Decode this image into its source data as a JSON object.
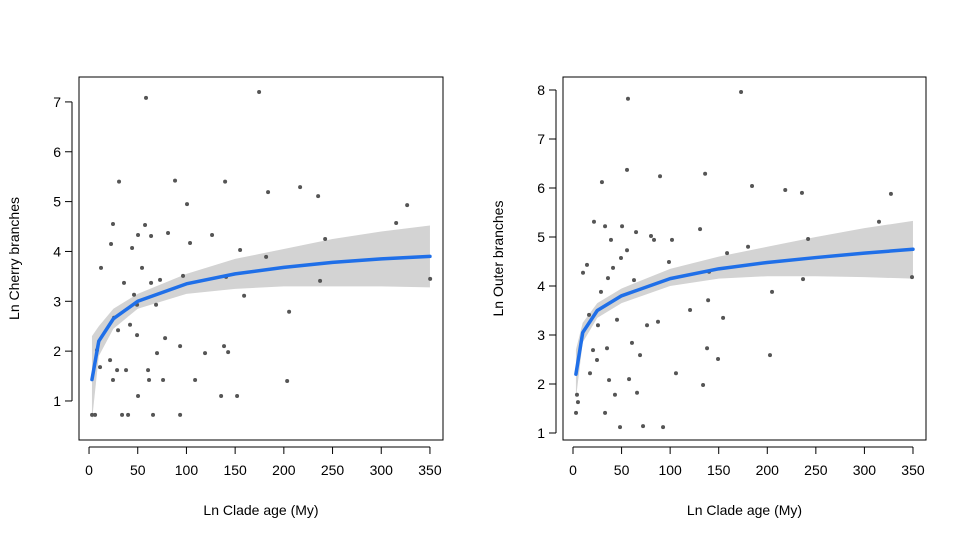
{
  "chart_data": [
    {
      "type": "scatter",
      "x_label": "Ln Clade age (My)",
      "y_label": "Ln Cherry branches",
      "xlim": [
        -10.3,
        363.4
      ],
      "ylim": [
        0.217,
        7.5
      ],
      "xticks": [
        0,
        50,
        100,
        150,
        200,
        250,
        300,
        350
      ],
      "yticks": [
        1,
        2,
        3,
        4,
        5,
        6,
        7
      ],
      "points": {
        "color": "#555555",
        "x": [
          3.1,
          6.2,
          11.3,
          8.2,
          12.3,
          21.6,
          22.6,
          24.6,
          24.6,
          25.7,
          29.8,
          28.8,
          30.8,
          33.9,
          35.9,
          38.0,
          40.1,
          42.1,
          44.2,
          46.2,
          49.3,
          50.3,
          50.3,
          54.4,
          58.5,
          57.5,
          60.6,
          61.6,
          63.7,
          65.7,
          69.8,
          68.8,
          72.9,
          76.0,
          78.1,
          81.1,
          88.3,
          93.5,
          93.5,
          96.5,
          100.6,
          108.9,
          119.1,
          126.3,
          135.6,
          139.7,
          140.7,
          142.8,
          152.0,
          159.2,
          174.6,
          181.8,
          183.8,
          205.4,
          203.4,
          216.7,
          235.2,
          237.2,
          242.4,
          315.3,
          326.6,
          350.2,
          49.3,
          63.7,
          103.7,
          155.1,
          138.6
        ],
        "y": [
          0.72,
          0.72,
          1.68,
          2.02,
          3.67,
          1.82,
          4.15,
          4.55,
          1.42,
          2.67,
          2.42,
          1.62,
          5.4,
          0.72,
          3.37,
          1.62,
          0.72,
          2.53,
          4.07,
          3.13,
          2.32,
          4.33,
          1.1,
          3.67,
          7.08,
          4.53,
          1.62,
          1.42,
          3.37,
          0.72,
          1.96,
          2.93,
          3.43,
          1.42,
          2.26,
          4.37,
          5.42,
          2.1,
          0.72,
          3.51,
          4.95,
          1.42,
          1.96,
          4.33,
          1.1,
          5.4,
          3.49,
          1.98,
          1.1,
          3.11,
          7.2,
          3.89,
          5.19,
          2.79,
          1.4,
          5.29,
          5.11,
          3.41,
          4.25,
          4.57,
          4.93,
          3.45,
          2.93,
          4.31,
          4.17,
          4.03,
          2.1
        ]
      },
      "fit": {
        "color": "#1f6fe8",
        "band_color": "#d3d3d3",
        "x": [
          3,
          10,
          25,
          50,
          100,
          150,
          200,
          250,
          300,
          350
        ],
        "y": [
          1.43,
          2.2,
          2.65,
          3.0,
          3.35,
          3.55,
          3.68,
          3.78,
          3.85,
          3.9
        ],
        "lower": [
          0.6,
          1.9,
          2.45,
          2.85,
          3.15,
          3.25,
          3.3,
          3.3,
          3.3,
          3.28
        ],
        "upper": [
          2.3,
          2.5,
          2.85,
          3.15,
          3.55,
          3.85,
          4.05,
          4.25,
          4.4,
          4.52
        ]
      }
    },
    {
      "type": "scatter",
      "x_label": "Ln Clade age (My)",
      "y_label": "Ln Outer branches",
      "xlim": [
        -10.3,
        363.4
      ],
      "ylim": [
        0.857,
        8.265
      ],
      "xticks": [
        0,
        50,
        100,
        150,
        200,
        250,
        300,
        350
      ],
      "yticks": [
        1,
        2,
        3,
        4,
        5,
        6,
        7,
        8
      ],
      "points": {
        "color": "#555555",
        "x": [
          3.1,
          4.1,
          5.1,
          10.3,
          14.4,
          17.5,
          16.5,
          20.6,
          21.6,
          24.7,
          25.7,
          28.8,
          29.8,
          33.0,
          33.0,
          35.0,
          36.0,
          37.1,
          39.1,
          41.2,
          43.2,
          45.3,
          48.4,
          49.4,
          50.5,
          55.6,
          56.6,
          55.6,
          57.7,
          60.7,
          62.8,
          64.9,
          65.9,
          69.0,
          72.1,
          76.2,
          80.3,
          83.4,
          87.5,
          89.6,
          92.7,
          98.8,
          101.9,
          106.0,
          120.5,
          130.8,
          133.9,
          136.0,
          138.0,
          139.1,
          140.1,
          149.3,
          154.5,
          158.6,
          173.0,
          180.2,
          184.3,
          204.9,
          202.8,
          218.5,
          235.7,
          236.8,
          242.0,
          315.0,
          327.3,
          349.0
        ],
        "y": [
          1.41,
          1.78,
          1.63,
          4.27,
          4.43,
          2.22,
          3.41,
          2.69,
          5.31,
          2.49,
          3.2,
          3.88,
          6.12,
          5.22,
          1.41,
          2.73,
          4.16,
          2.08,
          4.94,
          4.37,
          1.78,
          3.31,
          1.12,
          4.57,
          5.22,
          6.37,
          7.82,
          4.73,
          2.1,
          2.84,
          4.12,
          5.1,
          1.82,
          2.59,
          1.14,
          3.2,
          5.02,
          4.94,
          3.27,
          6.24,
          1.12,
          4.49,
          4.94,
          2.22,
          3.51,
          5.16,
          1.98,
          6.29,
          2.73,
          3.71,
          4.29,
          2.51,
          3.35,
          4.67,
          7.96,
          4.8,
          6.04,
          3.88,
          2.59,
          5.96,
          5.9,
          4.14,
          4.96,
          5.31,
          5.88,
          4.18
        ]
      },
      "fit": {
        "color": "#1f6fe8",
        "band_color": "#d3d3d3",
        "x": [
          3,
          10,
          25,
          50,
          100,
          150,
          200,
          250,
          300,
          350
        ],
        "y": [
          2.2,
          3.05,
          3.5,
          3.8,
          4.15,
          4.35,
          4.48,
          4.58,
          4.67,
          4.75
        ],
        "lower": [
          1.7,
          2.85,
          3.35,
          3.65,
          4.0,
          4.15,
          4.2,
          4.2,
          4.18,
          4.15
        ],
        "upper": [
          2.7,
          3.25,
          3.65,
          3.95,
          4.35,
          4.6,
          4.8,
          5.0,
          5.18,
          5.33
        ]
      }
    }
  ]
}
